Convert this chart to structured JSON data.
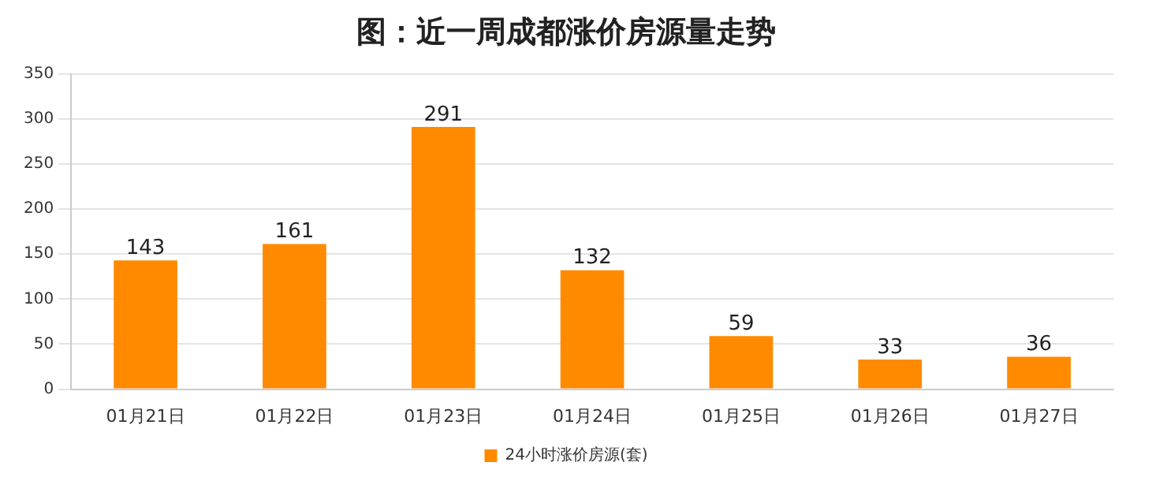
{
  "chart_data": {
    "type": "bar",
    "title": "图：近一周成都涨价房源量走势",
    "categories": [
      "01月21日",
      "01月22日",
      "01月23日",
      "01月24日",
      "01月25日",
      "01月26日",
      "01月27日"
    ],
    "series": [
      {
        "name": "24小时涨价房源(套)",
        "color": "#ff8a00",
        "values": [
          143,
          161,
          291,
          132,
          59,
          33,
          36
        ]
      }
    ],
    "ylim": [
      0,
      350
    ],
    "yticks": [
      0,
      50,
      100,
      150,
      200,
      250,
      300,
      350
    ],
    "grid": "y",
    "legend": "bottom",
    "data_labels": true
  }
}
